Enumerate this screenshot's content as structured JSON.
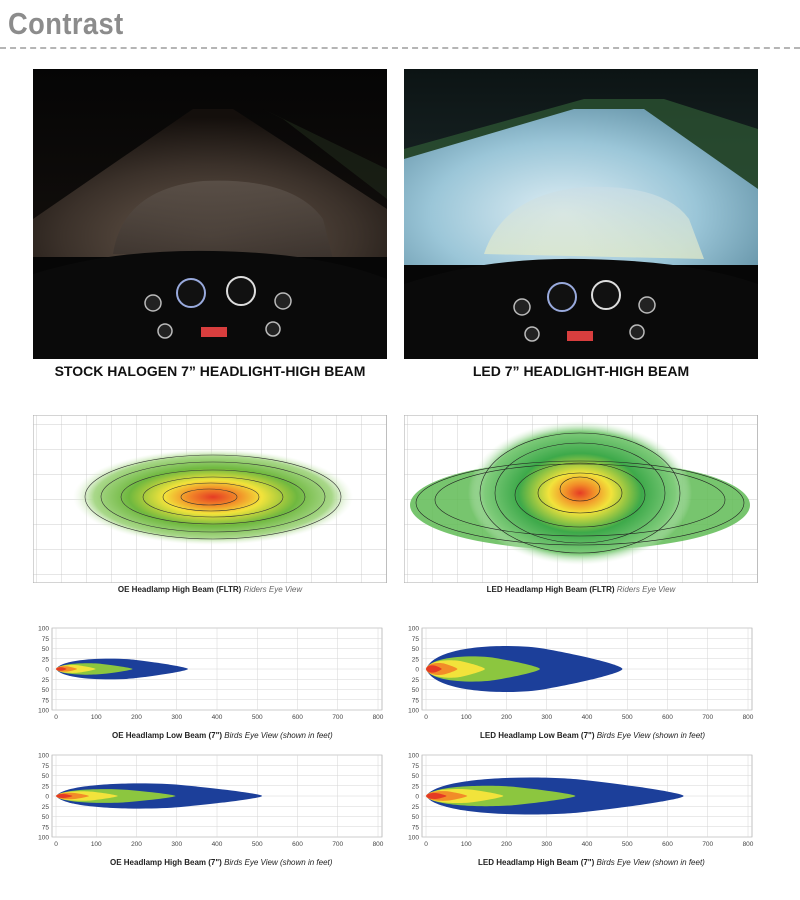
{
  "header": {
    "title": "Contrast"
  },
  "photos": {
    "left": {
      "caption": "STOCK HALOGEN 7” HEADLIGHT-HIGH BEAM"
    },
    "right": {
      "caption": "LED 7” HEADLIGHT-HIGH BEAM"
    }
  },
  "beam_patterns": {
    "left": {
      "label": "OE Headlamp High Beam (FLTR)",
      "view": "Riders Eye View"
    },
    "right": {
      "label": "LED Headlamp High Beam (FLTR)",
      "view": "Riders Eye View"
    }
  },
  "plots": {
    "y_ticks": [
      "100",
      "75",
      "50",
      "25",
      "0",
      "25",
      "50",
      "75",
      "100"
    ],
    "x_ticks": [
      "0",
      "100",
      "200",
      "300",
      "400",
      "500",
      "600",
      "700",
      "800"
    ],
    "oe_low": {
      "label": "OE Headlamp Low Beam (7\")",
      "view": "Birds Eye View (shown in feet)"
    },
    "led_low": {
      "label": "LED Headlamp Low Beam (7\")",
      "view": "Birds Eye View (shown in feet)"
    },
    "oe_high": {
      "label": "OE Headlamp High Beam (7\")",
      "view": "Birds Eye View (shown in feet)"
    },
    "led_high": {
      "label": "LED Headlamp High Beam (7\")",
      "view": "Birds Eye View (shown in feet)"
    }
  },
  "colors": {
    "title": "#8c8c8c",
    "beam_outer": "#1c3f9a",
    "beam_green": "#8cc63f",
    "beam_yellow": "#f2e33b",
    "beam_orange": "#f28c28",
    "beam_red": "#e53b24"
  }
}
